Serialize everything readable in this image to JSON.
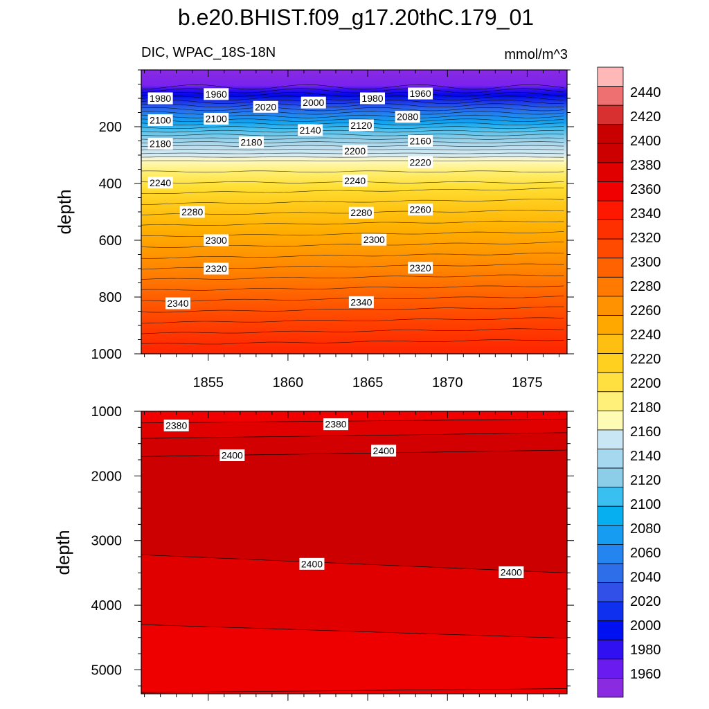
{
  "chart_data": {
    "type": "contour",
    "title": "b.e20.BHIST.f09_g17.20thC.179_01",
    "subtitle_left": "DIC, WPAC_18S-18N",
    "subtitle_right": "mmol/m^3",
    "ylabel": "depth",
    "xlabel": "",
    "x_range": [
      1850.8,
      1877.5
    ],
    "x_ticks": [
      "1855",
      "1860",
      "1865",
      "1870",
      "1875"
    ],
    "panels": [
      {
        "name": "upper",
        "y_range": [
          0,
          1000
        ],
        "y_ticks": [
          "200",
          "400",
          "600",
          "800",
          "1000"
        ],
        "contour_labels": [
          {
            "text": "1980",
            "x": 1852.0,
            "y": 100
          },
          {
            "text": "1960",
            "x": 1855.5,
            "y": 85
          },
          {
            "text": "2020",
            "x": 1858.6,
            "y": 130
          },
          {
            "text": "2000",
            "x": 1861.6,
            "y": 115
          },
          {
            "text": "1980",
            "x": 1865.3,
            "y": 100
          },
          {
            "text": "1960",
            "x": 1868.3,
            "y": 83
          },
          {
            "text": "2100",
            "x": 1852.0,
            "y": 177
          },
          {
            "text": "2100",
            "x": 1855.5,
            "y": 172
          },
          {
            "text": "2140",
            "x": 1861.4,
            "y": 212
          },
          {
            "text": "2120",
            "x": 1864.6,
            "y": 195
          },
          {
            "text": "2080",
            "x": 1867.5,
            "y": 165
          },
          {
            "text": "2180",
            "x": 1852.0,
            "y": 260
          },
          {
            "text": "2180",
            "x": 1857.7,
            "y": 255
          },
          {
            "text": "2200",
            "x": 1864.2,
            "y": 285
          },
          {
            "text": "2160",
            "x": 1868.3,
            "y": 250
          },
          {
            "text": "2220",
            "x": 1868.3,
            "y": 325
          },
          {
            "text": "2240",
            "x": 1852.0,
            "y": 397
          },
          {
            "text": "2240",
            "x": 1864.2,
            "y": 390
          },
          {
            "text": "2260",
            "x": 1868.3,
            "y": 492
          },
          {
            "text": "2280",
            "x": 1854.0,
            "y": 500
          },
          {
            "text": "2280",
            "x": 1864.6,
            "y": 503
          },
          {
            "text": "2300",
            "x": 1855.5,
            "y": 600
          },
          {
            "text": "2300",
            "x": 1865.4,
            "y": 598
          },
          {
            "text": "2320",
            "x": 1855.5,
            "y": 700
          },
          {
            "text": "2320",
            "x": 1868.3,
            "y": 697
          },
          {
            "text": "2340",
            "x": 1853.1,
            "y": 822
          },
          {
            "text": "2340",
            "x": 1864.6,
            "y": 818
          }
        ]
      },
      {
        "name": "lower",
        "y_range": [
          1000,
          5370
        ],
        "y_ticks": [
          "1000",
          "2000",
          "3000",
          "4000",
          "5000"
        ],
        "contour_labels": [
          {
            "text": "2380",
            "x": 1853.0,
            "y": 1220
          },
          {
            "text": "2380",
            "x": 1863.0,
            "y": 1200
          },
          {
            "text": "2400",
            "x": 1856.5,
            "y": 1680
          },
          {
            "text": "2400",
            "x": 1866.0,
            "y": 1610
          },
          {
            "text": "2400",
            "x": 1861.5,
            "y": 3360
          },
          {
            "text": "2400",
            "x": 1874.0,
            "y": 3490
          }
        ]
      }
    ],
    "colorbar": {
      "levels": [
        "1960",
        "1980",
        "2000",
        "2020",
        "2040",
        "2060",
        "2080",
        "2100",
        "2120",
        "2140",
        "2160",
        "2180",
        "2200",
        "2220",
        "2240",
        "2260",
        "2280",
        "2300",
        "2320",
        "2340",
        "2360",
        "2380",
        "2400",
        "2420",
        "2440"
      ],
      "colors": [
        "#8a2be2",
        "#6a1bf0",
        "#3010f0",
        "#0010f0",
        "#1030f0",
        "#3050e8",
        "#2e6ee8",
        "#2585f0",
        "#169cf0",
        "#06b0f0",
        "#3ac0f0",
        "#8ccde8",
        "#a6d8f0",
        "#c8e6f4",
        "#fffab4",
        "#fff07a",
        "#ffe040",
        "#ffd020",
        "#ffbf10",
        "#ffa800",
        "#ff9200",
        "#ff7a00",
        "#ff6200",
        "#ff4a00",
        "#ff3000",
        "#ff1800",
        "#f00000",
        "#e00000",
        "#cc0000",
        "#c80000",
        "#d83030",
        "#ee7070",
        "#ffb8b8"
      ]
    }
  }
}
